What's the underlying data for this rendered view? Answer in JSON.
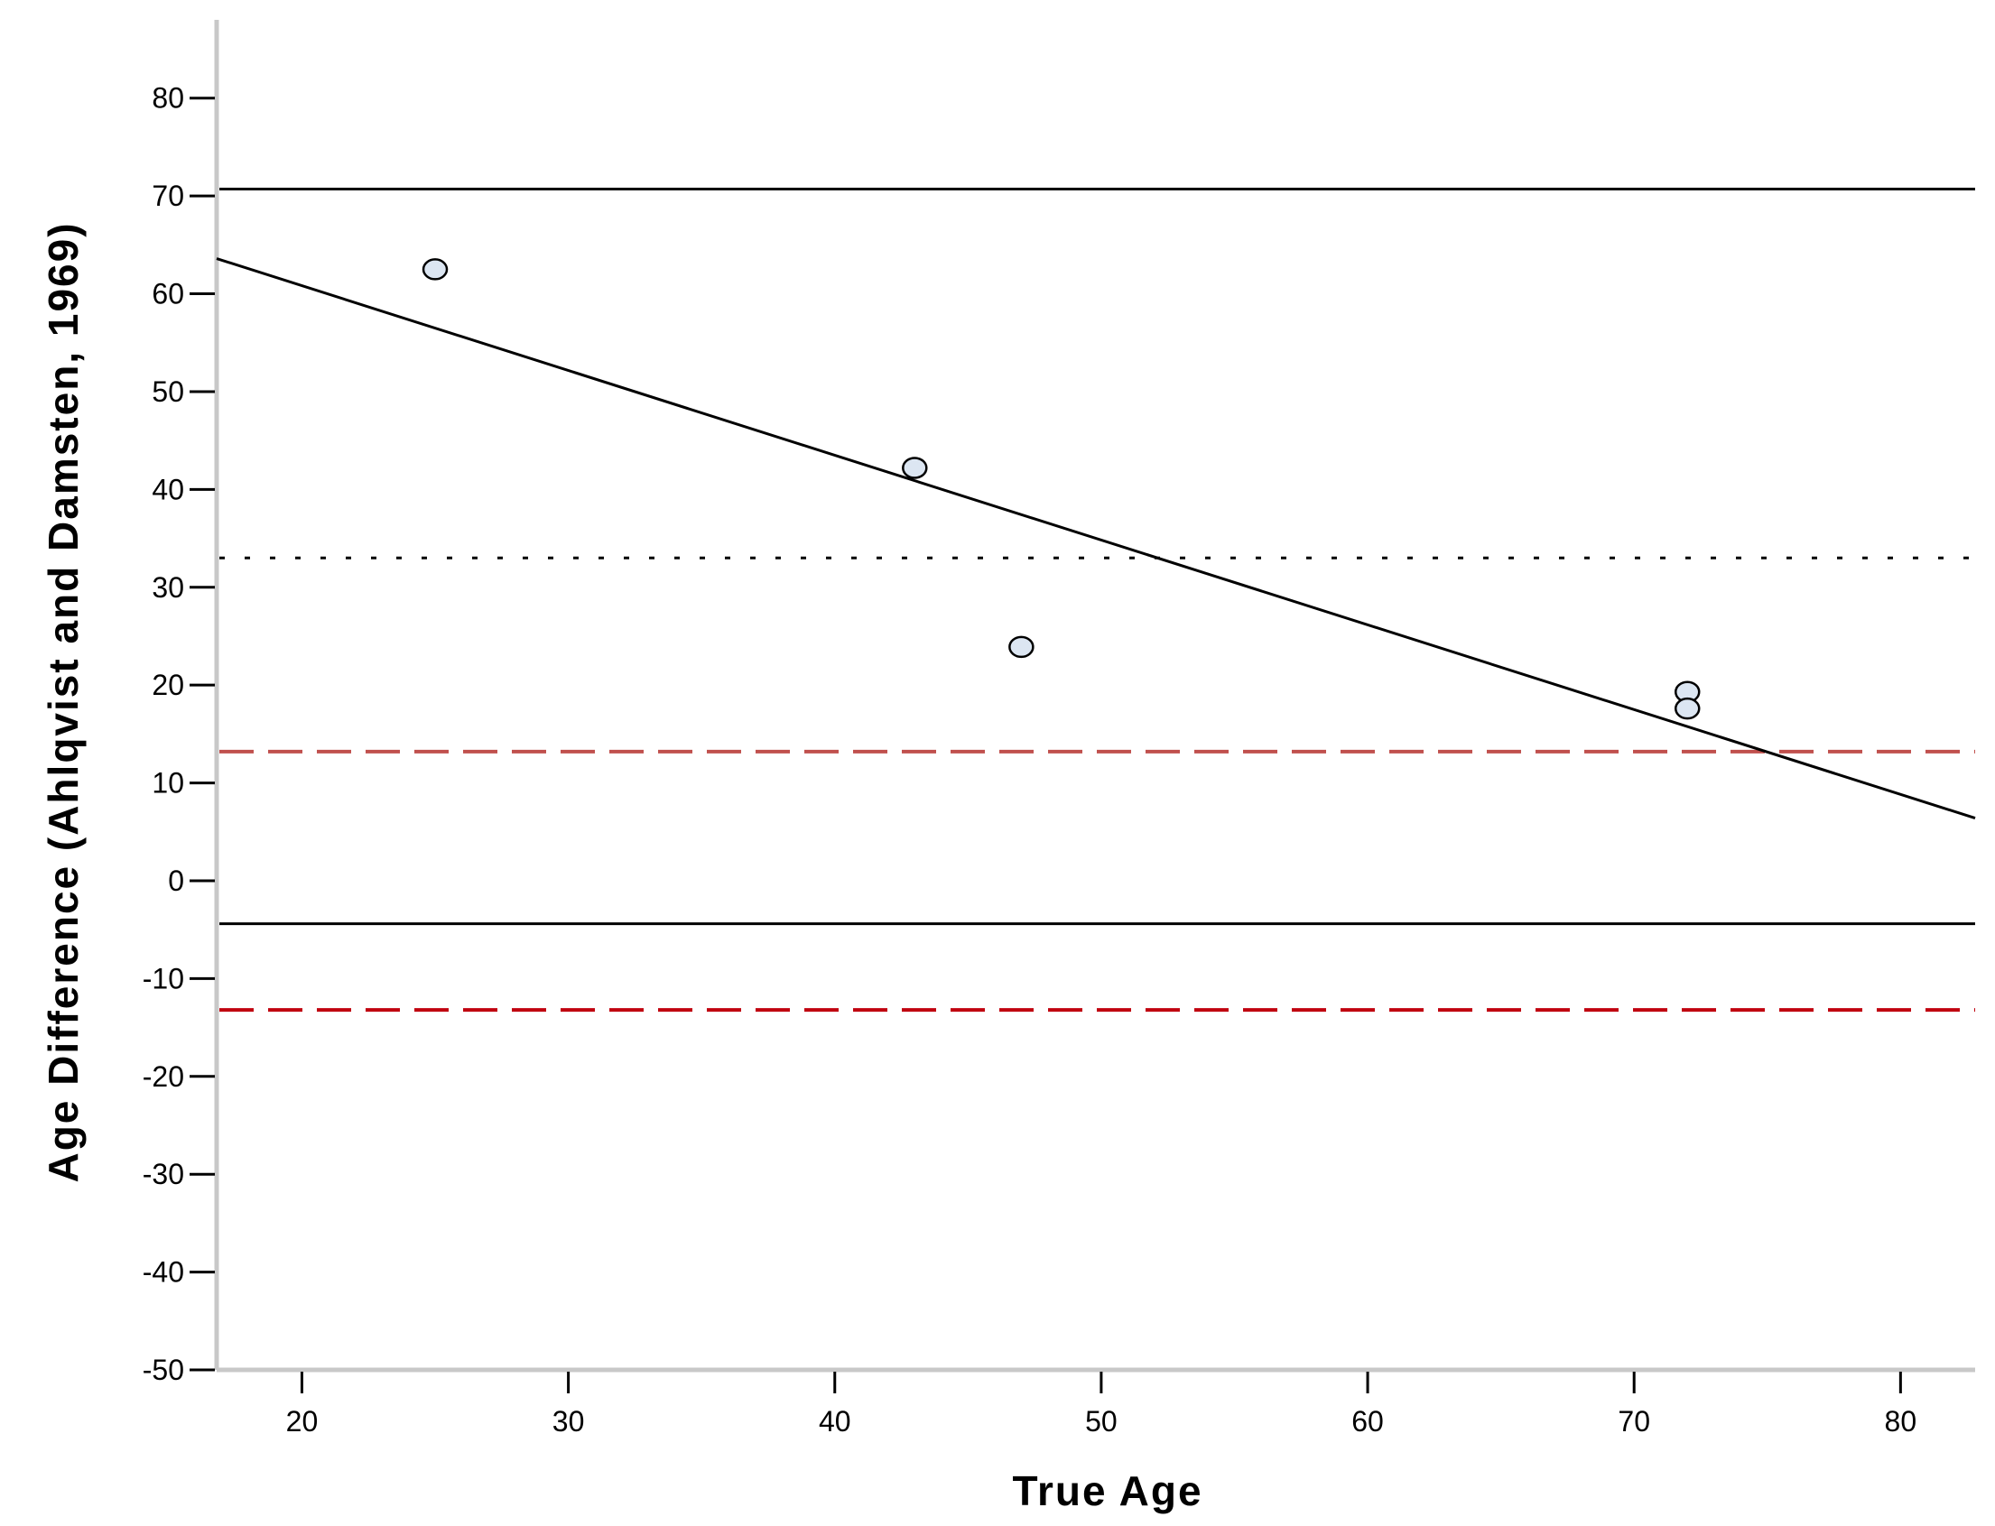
{
  "chart_data": {
    "type": "scatter",
    "title": "",
    "xlabel": "True Age",
    "ylabel": "Age Difference (Ahlqvist and Damsten, 1969)",
    "xlim": [
      16.8,
      82.8
    ],
    "ylim": [
      -50,
      88
    ],
    "x_ticks": [
      20,
      30,
      40,
      50,
      60,
      70,
      80
    ],
    "y_ticks": [
      80,
      70,
      60,
      50,
      40,
      30,
      20,
      10,
      0,
      -10,
      -20,
      -30,
      -40,
      -50
    ],
    "grid": false,
    "points": [
      {
        "x": 25,
        "y": 62.5
      },
      {
        "x": 43,
        "y": 42.2
      },
      {
        "x": 47,
        "y": 23.9
      },
      {
        "x": 72,
        "y": 19.3
      },
      {
        "x": 72,
        "y": 17.6
      }
    ],
    "reference_lines": [
      {
        "kind": "solid",
        "orientation": "horizontal",
        "y": 70.7,
        "color": "#000000"
      },
      {
        "kind": "dotted",
        "orientation": "horizontal",
        "y": 33.0,
        "color": "#000000"
      },
      {
        "kind": "dashed",
        "orientation": "horizontal",
        "y": 13.2,
        "color": "#c0504d"
      },
      {
        "kind": "solid",
        "orientation": "horizontal",
        "y": -4.4,
        "color": "#000000"
      },
      {
        "kind": "dashed",
        "orientation": "horizontal",
        "y": -13.2,
        "color": "#c0000f"
      }
    ],
    "regression_line": {
      "x_start": 16.8,
      "y_start": 63.6,
      "x_end": 82.8,
      "y_end": 6.4,
      "color": "#000000"
    },
    "colors": {
      "point_fill": "#dce6f2",
      "point_stroke": "#000000",
      "axis": "#c8c8c8"
    }
  }
}
